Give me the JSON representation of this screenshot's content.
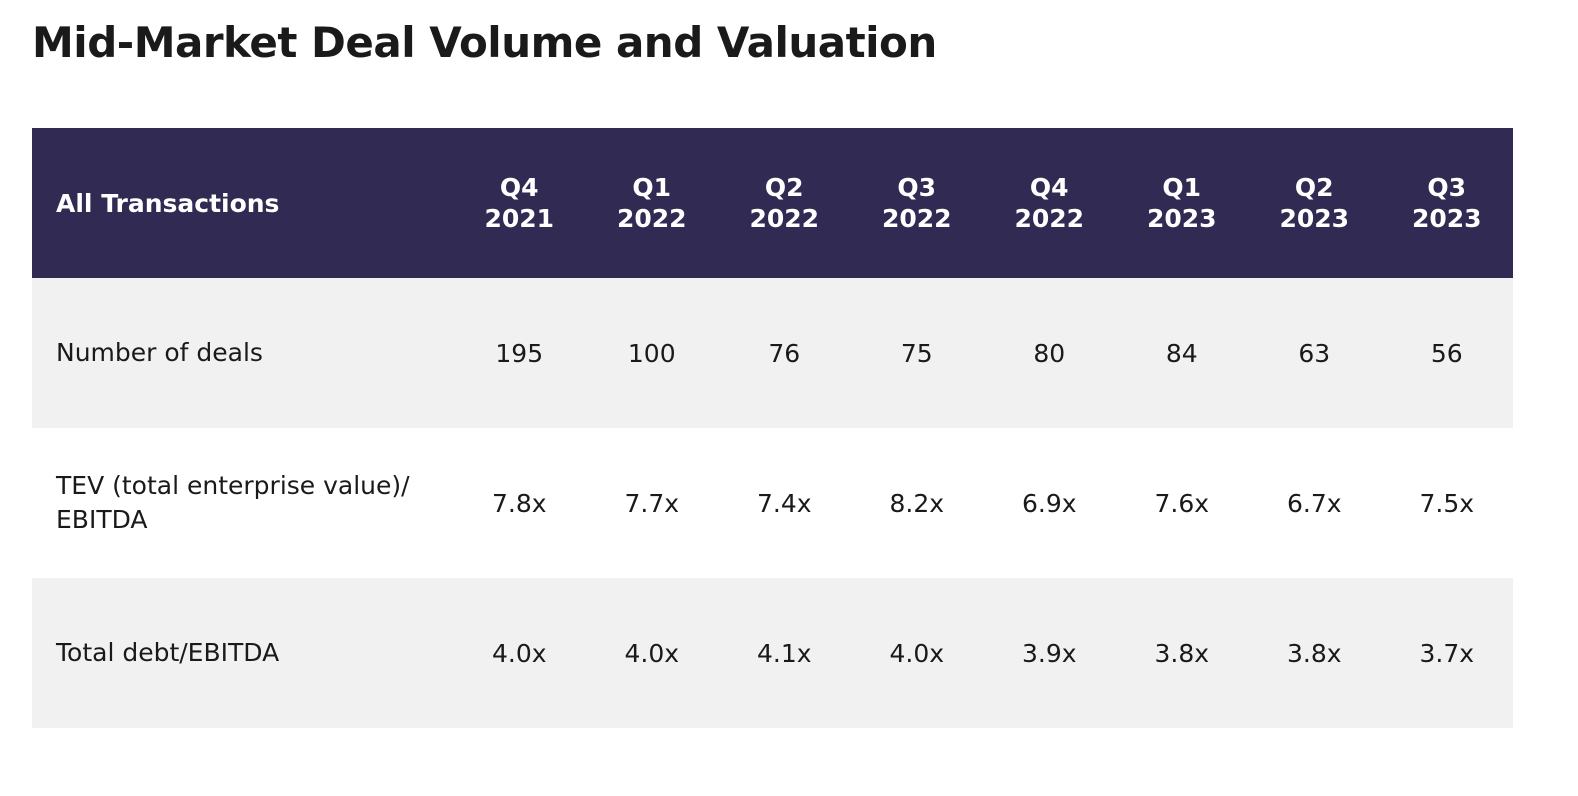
{
  "title": "Mid-Market Deal Volume and Valuation",
  "table": {
    "corner_header": "All Transactions",
    "columns": [
      {
        "quarter": "Q4",
        "year": "2021"
      },
      {
        "quarter": "Q1",
        "year": "2022"
      },
      {
        "quarter": "Q2",
        "year": "2022"
      },
      {
        "quarter": "Q3",
        "year": "2022"
      },
      {
        "quarter": "Q4",
        "year": "2022"
      },
      {
        "quarter": "Q1",
        "year": "2023"
      },
      {
        "quarter": "Q2",
        "year": "2023"
      },
      {
        "quarter": "Q3",
        "year": "2023"
      }
    ],
    "rows": [
      {
        "label": "Number of deals",
        "values": [
          "195",
          "100",
          "76",
          "75",
          "80",
          "84",
          "63",
          "56"
        ]
      },
      {
        "label": "TEV (total enterprise value)/ EBITDA",
        "values": [
          "7.8x",
          "7.7x",
          "7.4x",
          "8.2x",
          "6.9x",
          "7.6x",
          "6.7x",
          "7.5x"
        ]
      },
      {
        "label": "Total debt/EBITDA",
        "values": [
          "4.0x",
          "4.0x",
          "4.1x",
          "4.0x",
          "3.9x",
          "3.8x",
          "3.8x",
          "3.7x"
        ]
      }
    ]
  },
  "colors": {
    "header_bg": "#312a52",
    "header_text": "#ffffff",
    "row_alt_bg": "#f1f1f1"
  }
}
